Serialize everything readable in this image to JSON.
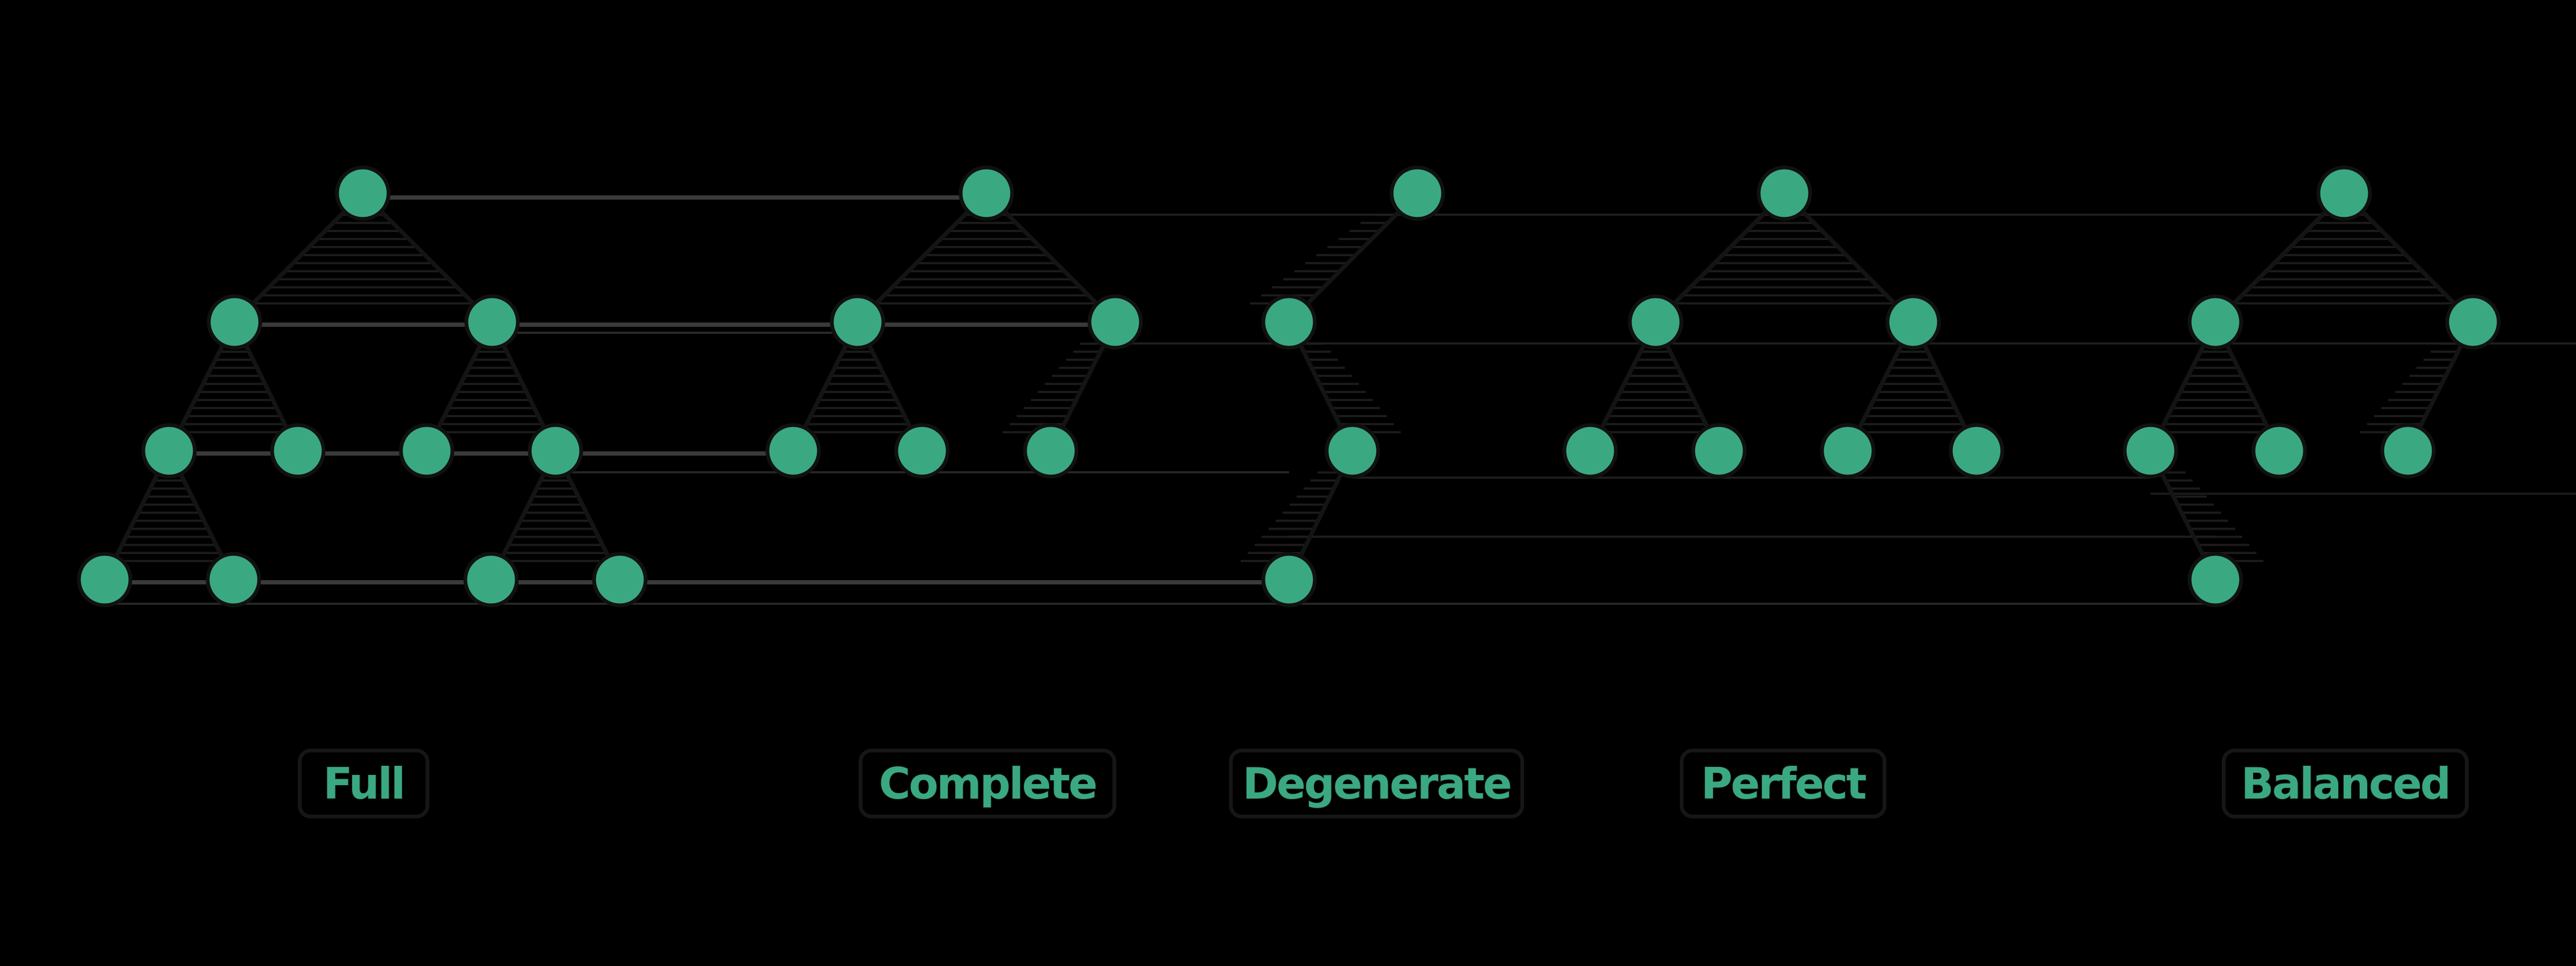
{
  "colors": {
    "background": "#000000",
    "node_fill": "#3aa981",
    "node_stroke": "#111111",
    "edge": "#141414",
    "level_line": "#3a3a3a",
    "label_text": "#3aa981"
  },
  "trees": [
    {
      "id": "full",
      "label": "Full"
    },
    {
      "id": "complete",
      "label": "Complete"
    },
    {
      "id": "degenerate",
      "label": "Degenerate"
    },
    {
      "id": "perfect",
      "label": "Perfect"
    },
    {
      "id": "balanced",
      "label": "Balanced"
    }
  ]
}
